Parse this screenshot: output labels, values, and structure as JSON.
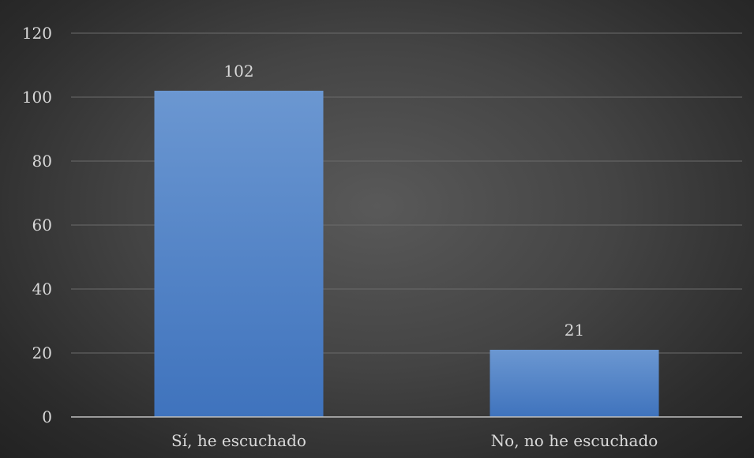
{
  "chart_data": {
    "type": "bar",
    "title": "",
    "xlabel": "",
    "ylabel": "",
    "categories": [
      "Sí, he escuchado",
      "No, no he escuchado"
    ],
    "values": [
      102,
      21
    ],
    "data_labels": [
      "102",
      "21"
    ],
    "y_ticks": [
      "0",
      "20",
      "40",
      "60",
      "80",
      "100",
      "120"
    ],
    "ylim": [
      0,
      120
    ],
    "grid": true,
    "legend": "none",
    "colors": {
      "bar": "#4a7ec6",
      "bar_light": "#6a96d0",
      "grid": "#6b6b6b",
      "axis": "#bfbfbf",
      "text": "#d9d9d9"
    }
  }
}
